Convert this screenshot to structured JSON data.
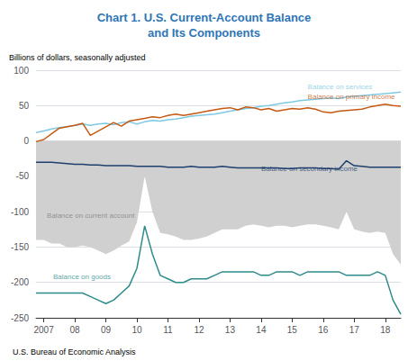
{
  "chart_data": {
    "type": "line",
    "title": "Chart 1. U.S. Current-Account Balance\nand Its Components",
    "title_color": "#2E75B6",
    "y_label": "Billions of dollars, seasonally adjusted",
    "source": "U.S. Bureau of Economic Analysis",
    "x": [
      2006.75,
      2007,
      2007.25,
      2007.5,
      2007.75,
      2008,
      2008.25,
      2008.5,
      2008.75,
      2009,
      2009.25,
      2009.5,
      2009.75,
      2010,
      2010.25,
      2010.5,
      2010.75,
      2011,
      2011.25,
      2011.5,
      2011.75,
      2012,
      2012.25,
      2012.5,
      2012.75,
      2013,
      2013.25,
      2013.5,
      2013.75,
      2014,
      2014.25,
      2014.5,
      2014.75,
      2015,
      2015.25,
      2015.5,
      2015.75,
      2016,
      2016.25,
      2016.5,
      2016.75,
      2017,
      2017.25,
      2017.5,
      2017.75,
      2018,
      2018.25,
      2018.5
    ],
    "xlim": [
      2006.75,
      2018.5
    ],
    "xticks": [
      2007,
      {
        "value": 2008,
        "label": "08"
      },
      {
        "value": 2009,
        "label": "09"
      },
      {
        "value": 2010,
        "label": "10"
      },
      {
        "value": 2011,
        "label": "11"
      },
      {
        "value": 2012,
        "label": "12"
      },
      {
        "value": 2013,
        "label": "13"
      },
      {
        "value": 2014,
        "label": "14"
      },
      {
        "value": 2015,
        "label": "15"
      },
      {
        "value": 2016,
        "label": "16"
      },
      {
        "value": 2017,
        "label": "17"
      },
      {
        "value": 2018,
        "label": "18"
      }
    ],
    "ylim": [
      -250,
      100
    ],
    "yticks": [
      -250,
      -200,
      -150,
      -100,
      -50,
      0,
      50,
      100
    ],
    "grid": true,
    "series": [
      {
        "type": "area",
        "color": "#D0D0D0",
        "values": [
          -140,
          -140,
          -145,
          -145,
          -150,
          -150,
          -148,
          -150,
          -155,
          -160,
          -155,
          -148,
          -142,
          -115,
          -50,
          -100,
          -130,
          -132,
          -135,
          -140,
          -140,
          -138,
          -135,
          -130,
          -125,
          -125,
          -125,
          -120,
          -118,
          -120,
          -122,
          -120,
          -120,
          -122,
          -120,
          -118,
          -118,
          -120,
          -122,
          -125,
          -100,
          -125,
          -128,
          -130,
          -128,
          -130,
          -160,
          -175
        ]
      },
      {
        "type": "line",
        "color": "#7EC8E3",
        "values": [
          12,
          14,
          17,
          19,
          20,
          22,
          24,
          22,
          24,
          25,
          23,
          26,
          27,
          24,
          27,
          29,
          28,
          30,
          31,
          33,
          35,
          36,
          37,
          38,
          40,
          42,
          44,
          46,
          47,
          49,
          50,
          52,
          54,
          55,
          57,
          58,
          59,
          60,
          61,
          60,
          62,
          63,
          64,
          65,
          66,
          67,
          68,
          69
        ]
      },
      {
        "type": "line",
        "color": "#C65911",
        "values": [
          -1,
          2,
          10,
          18,
          20,
          22,
          25,
          8,
          14,
          20,
          26,
          21,
          28,
          30,
          32,
          34,
          33,
          36,
          38,
          36,
          38,
          40,
          42,
          44,
          46,
          47,
          44,
          48,
          47,
          44,
          46,
          42,
          44,
          46,
          45,
          47,
          45,
          41,
          40,
          42,
          43,
          44,
          45,
          48,
          50,
          52,
          50,
          49
        ]
      },
      {
        "type": "line",
        "color": "#1F3F6E",
        "values": [
          -30,
          -30,
          -30,
          -31,
          -32,
          -33,
          -33,
          -34,
          -34,
          -35,
          -35,
          -35,
          -35,
          -36,
          -36,
          -36,
          -36,
          -37,
          -37,
          -37,
          -36,
          -37,
          -37,
          -37,
          -36,
          -37,
          -38,
          -38,
          -38,
          -38,
          -38,
          -38,
          -39,
          -39,
          -38,
          -38,
          -38,
          -39,
          -39,
          -40,
          -28,
          -35,
          -36,
          -37,
          -37,
          -37,
          -37,
          -37
        ]
      },
      {
        "type": "line",
        "color": "#2E8B8B",
        "values": [
          -215,
          -215,
          -215,
          -215,
          -215,
          -215,
          -215,
          -220,
          -225,
          -230,
          -225,
          -215,
          -205,
          -180,
          -120,
          -160,
          -190,
          -195,
          -200,
          -200,
          -195,
          -195,
          -195,
          -190,
          -185,
          -185,
          -185,
          -185,
          -185,
          -190,
          -190,
          -185,
          -185,
          -185,
          -190,
          -185,
          -185,
          -185,
          -185,
          -185,
          -190,
          -190,
          -190,
          -190,
          -185,
          -190,
          -225,
          -245
        ]
      }
    ],
    "annotations": [
      {
        "text": "Balance on services",
        "x": 2015.5,
        "y": 71,
        "color": "#7EC8E3"
      },
      {
        "text": "Balance on primary income",
        "x": 2015.5,
        "y": 57,
        "color": "#C65911"
      },
      {
        "text": "Balance on secondary income",
        "x": 2014.0,
        "y": -44,
        "color": "#1F3F6E"
      },
      {
        "text": "Balance on goods",
        "x": 2007.3,
        "y": -197,
        "color": "#2E8B8B"
      },
      {
        "text": "Balance on current account",
        "x": 2007.1,
        "y": -110,
        "color": "#808080"
      }
    ]
  }
}
